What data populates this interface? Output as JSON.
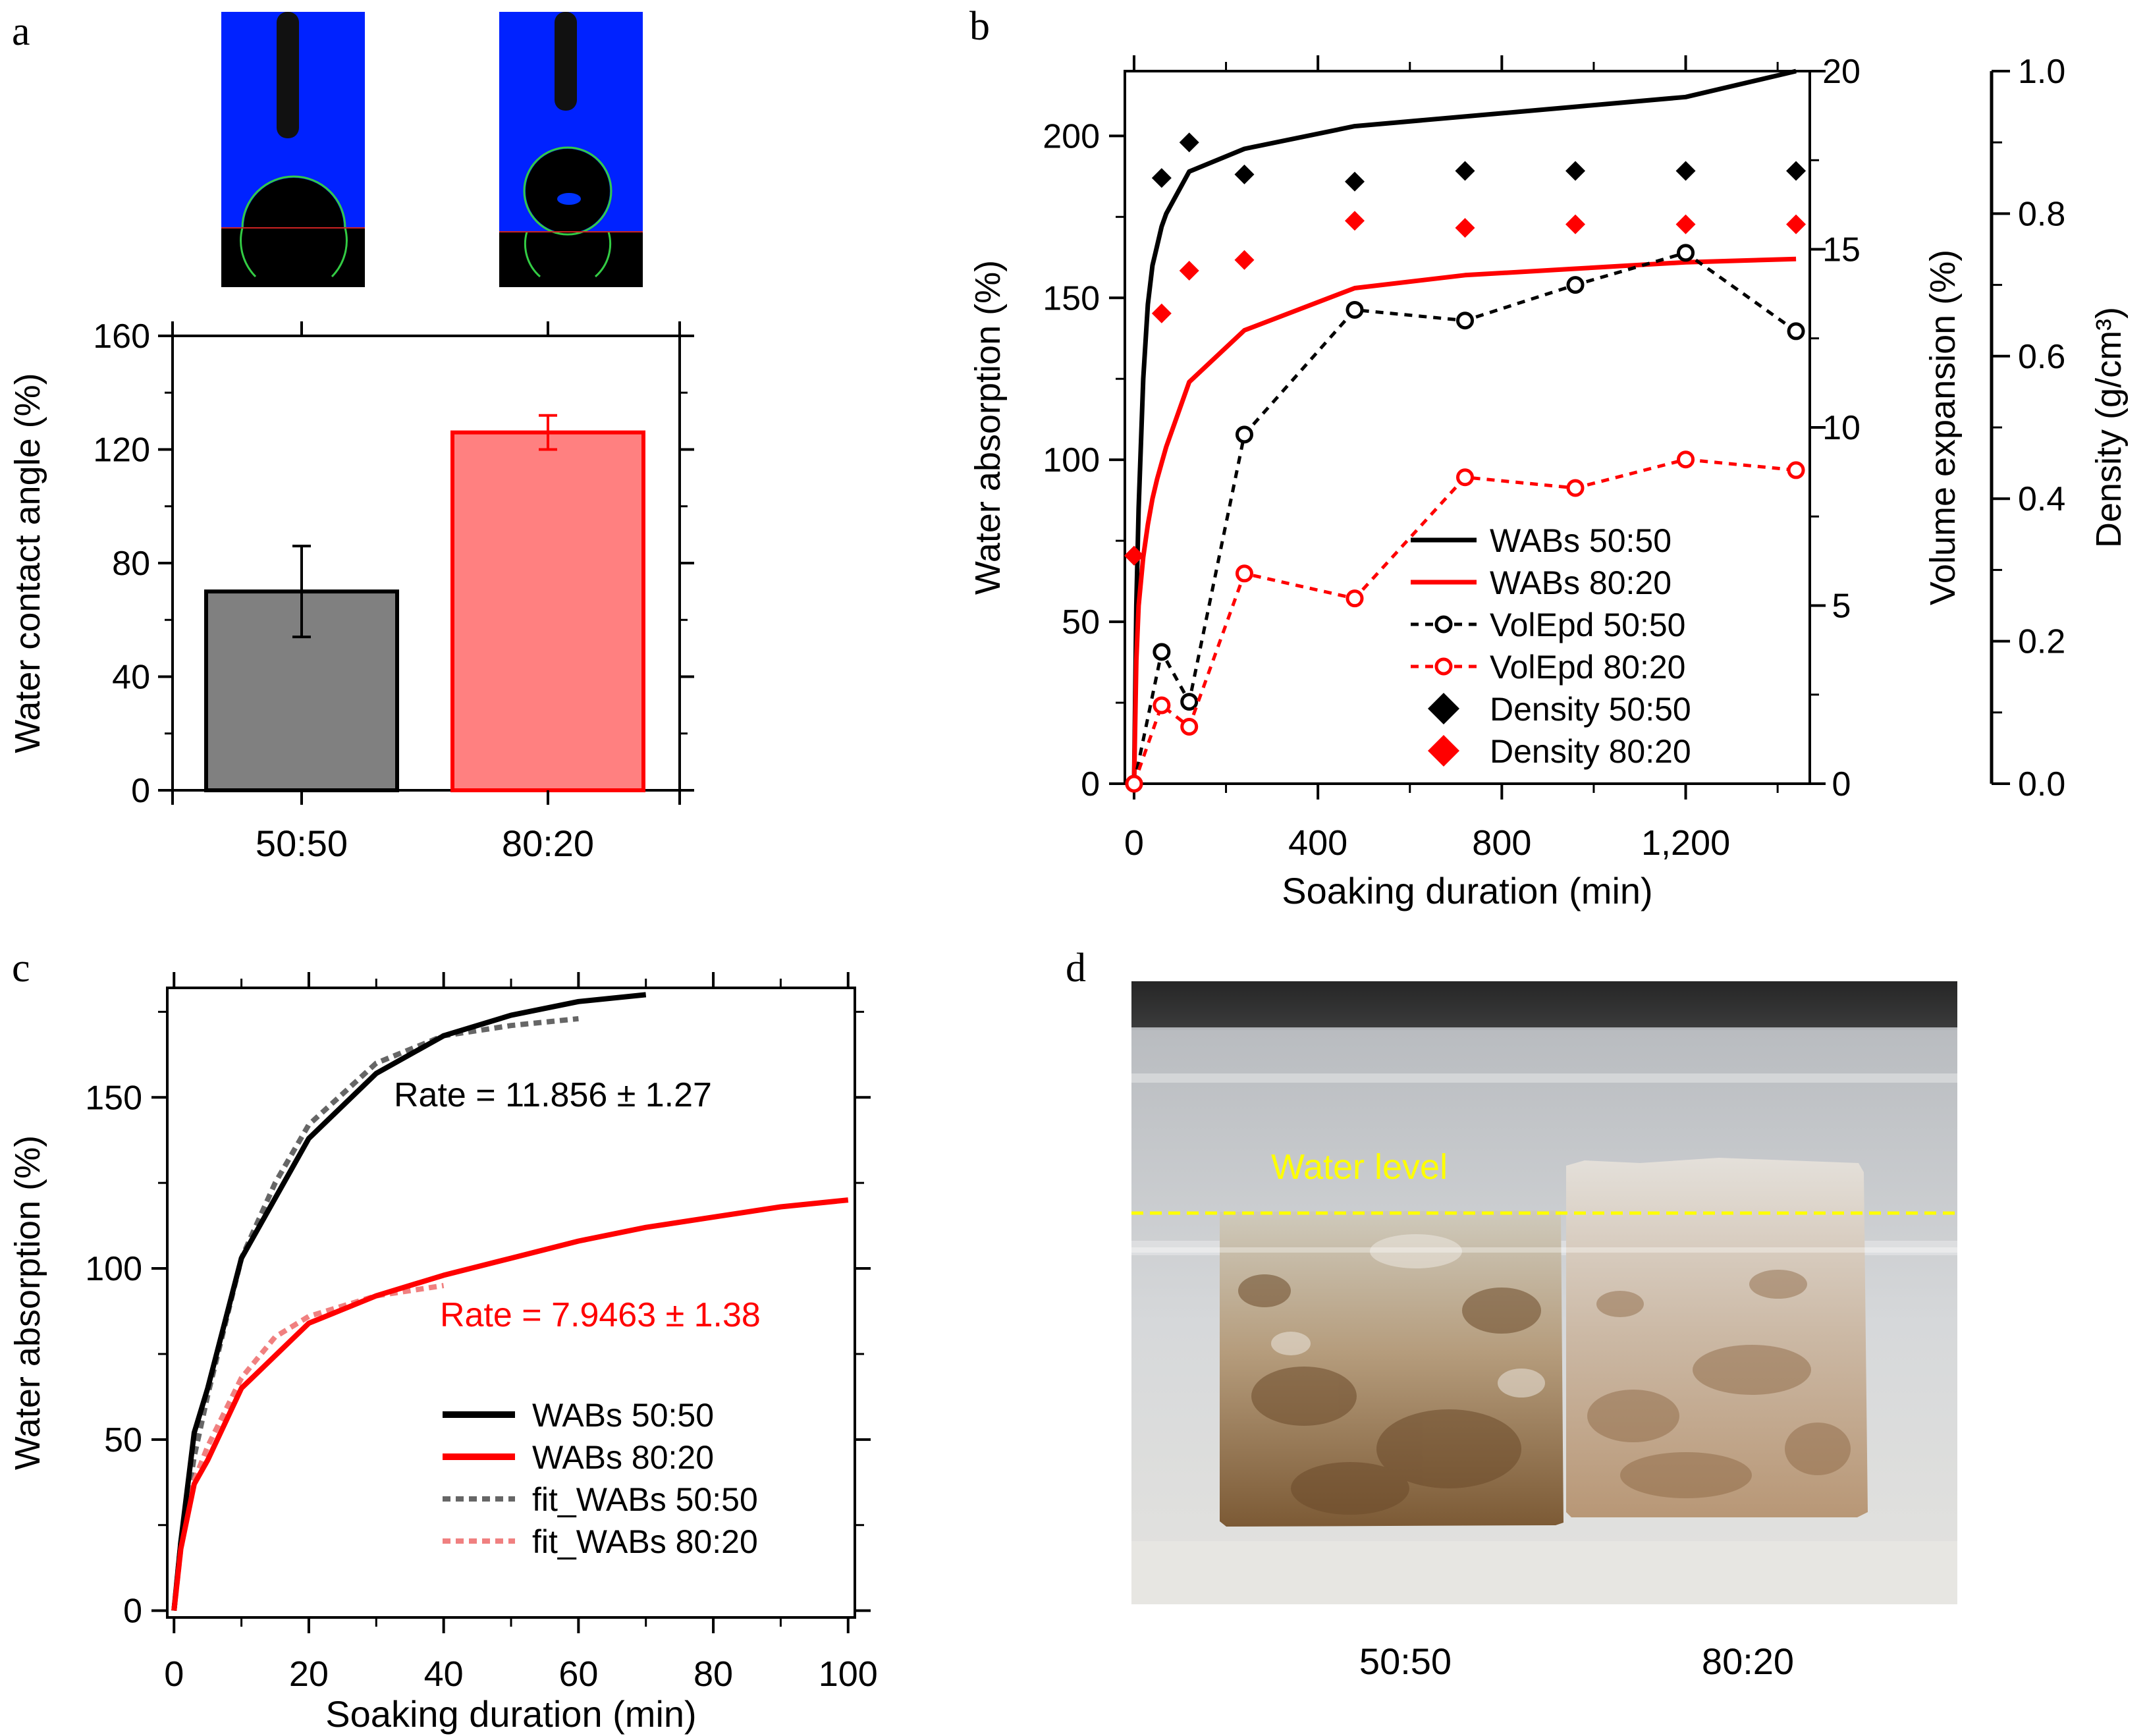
{
  "panels": {
    "a": {
      "letter": "a"
    },
    "b": {
      "letter": "b"
    },
    "c": {
      "letter": "c"
    },
    "d": {
      "letter": "d",
      "water_level_label": "Water level",
      "sample_labels": [
        "50:50",
        "80:20"
      ]
    }
  },
  "colors": {
    "black": "#000000",
    "red": "#ff0000",
    "gray_bar": "#808080",
    "pink_bar": "#ff8080",
    "fit_gray": "#666666",
    "fit_pink": "#f08080",
    "water_line": "#ffff00",
    "droplet_bg": "#0022ff"
  },
  "chart_data": [
    {
      "id": "a",
      "type": "bar",
      "categories": [
        "50:50",
        "80:20"
      ],
      "values": [
        70,
        126
      ],
      "errors": [
        16,
        6
      ],
      "ylabel": "Water contact angle (%)",
      "ylim": [
        0,
        160
      ],
      "yticks": [
        "0",
        "40",
        "80",
        "120",
        "160"
      ],
      "colors": [
        "#808080",
        "#ff8080"
      ]
    },
    {
      "id": "b",
      "type": "line",
      "xlabel": "Soaking duration (min)",
      "xlim": [
        -20,
        1470
      ],
      "xticks": [
        "0",
        "400",
        "800",
        "1,200"
      ],
      "ylabel": "Water absorption (%)",
      "ylim": [
        0,
        220
      ],
      "yticks": [
        "0",
        "50",
        "100",
        "150",
        "200"
      ],
      "y2label": "Volume expansion (%)",
      "y2lim": [
        0,
        20
      ],
      "y2ticks": [
        "0",
        "5",
        "10",
        "15",
        "20"
      ],
      "y3label": "Density (g/cm³)",
      "y3lim": [
        0,
        1.0
      ],
      "y3ticks": [
        "0.0",
        "0.2",
        "0.4",
        "0.6",
        "0.8",
        "1.0"
      ],
      "legend": "lower-right",
      "series": [
        {
          "name": "WABs 50:50",
          "axis": "left",
          "style": "line",
          "color": "#000000",
          "x": [
            0,
            5,
            10,
            20,
            30,
            40,
            50,
            60,
            70,
            120,
            240,
            480,
            720,
            960,
            1200,
            1440
          ],
          "y": [
            0,
            55,
            85,
            125,
            148,
            160,
            166,
            172,
            176,
            189,
            196,
            203,
            206,
            209,
            212,
            220
          ]
        },
        {
          "name": "WABs 80:20",
          "axis": "left",
          "style": "line",
          "color": "#ff0000",
          "x": [
            0,
            5,
            10,
            20,
            30,
            40,
            50,
            60,
            70,
            120,
            240,
            480,
            720,
            960,
            1200,
            1440
          ],
          "y": [
            0,
            38,
            55,
            70,
            80,
            88,
            94,
            99,
            104,
            124,
            140,
            153,
            157,
            159,
            161,
            162
          ]
        },
        {
          "name": "VolEpd 50:50",
          "axis": "right",
          "style": "dotted-marker",
          "color": "#000000",
          "x": [
            0,
            60,
            120,
            240,
            480,
            720,
            960,
            1200,
            1440
          ],
          "y": [
            0,
            3.7,
            2.3,
            9.8,
            13.3,
            13.0,
            14.0,
            14.9,
            12.7
          ]
        },
        {
          "name": "VolEpd 80:20",
          "axis": "right",
          "style": "dotted-marker",
          "color": "#ff0000",
          "x": [
            0,
            60,
            120,
            240,
            480,
            720,
            960,
            1200,
            1440
          ],
          "y": [
            0,
            2.2,
            1.6,
            5.9,
            5.2,
            8.6,
            8.3,
            9.1,
            8.8
          ]
        },
        {
          "name": "Density 50:50",
          "axis": "density",
          "style": "diamond",
          "color": "#000000",
          "x": [
            0,
            60,
            120,
            240,
            480,
            720,
            960,
            1200,
            1440
          ],
          "y": [
            0.32,
            0.85,
            0.9,
            0.855,
            0.845,
            0.86,
            0.86,
            0.86,
            0.86
          ]
        },
        {
          "name": "Density 80:20",
          "axis": "density",
          "style": "diamond",
          "color": "#ff0000",
          "x": [
            0,
            60,
            120,
            240,
            480,
            720,
            960,
            1200,
            1440
          ],
          "y": [
            0.32,
            0.66,
            0.72,
            0.735,
            0.79,
            0.78,
            0.785,
            0.785,
            0.785
          ]
        }
      ]
    },
    {
      "id": "c",
      "type": "line",
      "xlabel": "Soaking duration (min)",
      "xlim": [
        -1,
        101
      ],
      "xticks": [
        "0",
        "20",
        "40",
        "60",
        "80",
        "100"
      ],
      "ylabel": "Water absorption (%)",
      "ylim": [
        -2,
        182
      ],
      "yticks": [
        "0",
        "50",
        "100",
        "150"
      ],
      "legend": "lower-right",
      "annotations": [
        {
          "text": "Rate = 11.856 ± 1.27",
          "color": "#000000"
        },
        {
          "text": "Rate = 7.9463 ± 1.38",
          "color": "#ff0000"
        }
      ],
      "series": [
        {
          "name": "WABs 50:50",
          "style": "solid",
          "color": "#000000",
          "x": [
            0,
            1,
            3,
            5,
            10,
            20,
            30,
            40,
            50,
            60,
            70
          ],
          "y": [
            0,
            20,
            52,
            65,
            103,
            138,
            157,
            168,
            174,
            178,
            180
          ]
        },
        {
          "name": "WABs 80:20",
          "style": "solid",
          "color": "#ff0000",
          "x": [
            0,
            1,
            3,
            5,
            10,
            20,
            30,
            40,
            50,
            60,
            70,
            80,
            90,
            100
          ],
          "y": [
            0,
            18,
            37,
            44,
            65,
            84,
            92,
            98,
            103,
            108,
            112,
            115,
            118,
            120
          ]
        },
        {
          "name": "fit_WABs 50:50",
          "style": "dotted",
          "color": "#666666",
          "x": [
            0,
            1,
            3,
            5,
            10,
            15,
            20,
            30,
            40,
            50,
            60
          ],
          "y": [
            0,
            20,
            45,
            63,
            103,
            125,
            142,
            160,
            168,
            171,
            173
          ]
        },
        {
          "name": "fit_WABs 80:20",
          "style": "dotted",
          "color": "#f08080",
          "x": [
            0,
            1,
            3,
            5,
            10,
            15,
            20,
            30,
            40
          ],
          "y": [
            0,
            18,
            38,
            48,
            68,
            80,
            86,
            92,
            95
          ]
        }
      ]
    }
  ]
}
